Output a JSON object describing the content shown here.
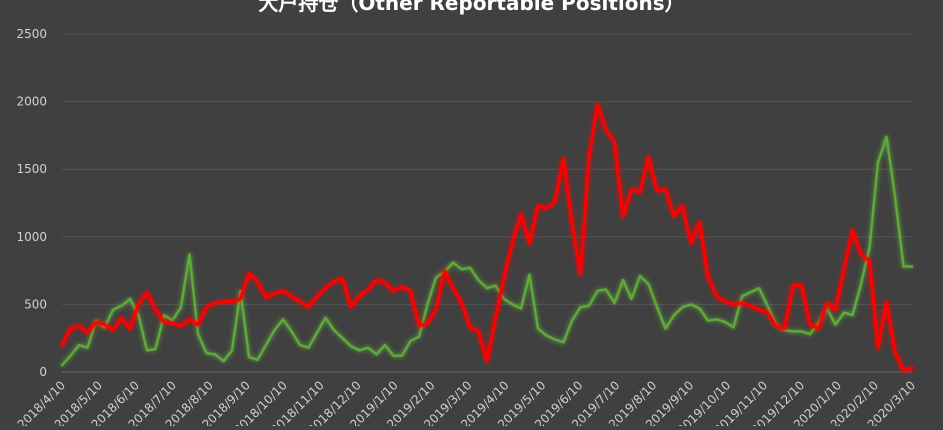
{
  "chart_data": {
    "type": "line",
    "title": "大户持仓（Other Reportable Positions）",
    "xlabel": "",
    "ylabel": "",
    "ylim": [
      0,
      2500
    ],
    "yticks": [
      0,
      500,
      1000,
      1500,
      2000,
      2500
    ],
    "grid": true,
    "legend": "none",
    "x": [
      "2018/4/10",
      "2018/4/17",
      "2018/4/24",
      "2018/5/1",
      "2018/5/8",
      "2018/5/15",
      "2018/5/22",
      "2018/5/29",
      "2018/6/5",
      "2018/6/12",
      "2018/6/19",
      "2018/6/26",
      "2018/7/3",
      "2018/7/10",
      "2018/7/17",
      "2018/7/24",
      "2018/7/31",
      "2018/8/7",
      "2018/8/14",
      "2018/8/21",
      "2018/8/28",
      "2018/9/4",
      "2018/9/11",
      "2018/9/18",
      "2018/9/25",
      "2018/10/2",
      "2018/10/9",
      "2018/10/16",
      "2018/10/23",
      "2018/10/30",
      "2018/11/6",
      "2018/11/13",
      "2018/11/20",
      "2018/11/27",
      "2018/12/4",
      "2018/12/11",
      "2018/12/18",
      "2018/12/25",
      "2019/1/1",
      "2019/1/8",
      "2019/1/15",
      "2019/1/22",
      "2019/1/29",
      "2019/2/5",
      "2019/2/12",
      "2019/2/19",
      "2019/2/26",
      "2019/3/5",
      "2019/3/12",
      "2019/3/19",
      "2019/3/26",
      "2019/4/2",
      "2019/4/9",
      "2019/4/16",
      "2019/4/23",
      "2019/4/30",
      "2019/5/7",
      "2019/5/14",
      "2019/5/21",
      "2019/5/28",
      "2019/6/4",
      "2019/6/11",
      "2019/6/18",
      "2019/6/25",
      "2019/7/2",
      "2019/7/9",
      "2019/7/16",
      "2019/7/23",
      "2019/7/30",
      "2019/8/6",
      "2019/8/13",
      "2019/8/20",
      "2019/8/27",
      "2019/9/3",
      "2019/9/10",
      "2019/9/17",
      "2019/9/24",
      "2019/10/1",
      "2019/10/8",
      "2019/10/15",
      "2019/10/22",
      "2019/10/29",
      "2019/11/5",
      "2019/11/12",
      "2019/11/19",
      "2019/11/26",
      "2019/12/3",
      "2019/12/10",
      "2019/12/17",
      "2019/12/24",
      "2019/12/31",
      "2020/1/7",
      "2020/1/14",
      "2020/1/21",
      "2020/1/28",
      "2020/2/4",
      "2020/2/11",
      "2020/2/18",
      "2020/2/25",
      "2020/3/3",
      "2020/3/10"
    ],
    "tick_labels": [
      "2018/4/10",
      "2018/5/10",
      "2018/6/10",
      "2018/7/10",
      "2018/8/10",
      "2018/9/10",
      "2018/10/10",
      "2018/11/10",
      "2018/12/10",
      "2019/1/10",
      "2019/2/10",
      "2019/3/10",
      "2019/4/10",
      "2019/5/10",
      "2019/6/10",
      "2019/7/10",
      "2019/8/10",
      "2019/9/10",
      "2019/10/10",
      "2019/11/10",
      "2019/12/10",
      "2020/1/10",
      "2020/2/10",
      "2020/3/10"
    ],
    "series": [
      {
        "color": "#5fa83b",
        "values": [
          50,
          120,
          200,
          180,
          380,
          330,
          460,
          490,
          540,
          420,
          160,
          170,
          420,
          380,
          480,
          870,
          280,
          140,
          130,
          80,
          160,
          600,
          110,
          90,
          200,
          310,
          390,
          300,
          200,
          180,
          290,
          400,
          310,
          250,
          190,
          160,
          180,
          130,
          200,
          120,
          120,
          230,
          260,
          500,
          700,
          740,
          810,
          760,
          770,
          680,
          620,
          640,
          540,
          500,
          470,
          720,
          320,
          270,
          240,
          220,
          380,
          480,
          490,
          600,
          610,
          510,
          680,
          540,
          710,
          650,
          480,
          320,
          420,
          480,
          500,
          470,
          380,
          390,
          370,
          330,
          560,
          590,
          620,
          490,
          350,
          310,
          300,
          300,
          280,
          360,
          470,
          350,
          440,
          420,
          650,
          920,
          1550,
          1740,
          1300,
          780,
          780
        ]
      },
      {
        "color": "#ff0000",
        "values": [
          200,
          320,
          340,
          290,
          370,
          350,
          310,
          400,
          320,
          500,
          590,
          460,
          370,
          360,
          340,
          390,
          350,
          480,
          510,
          520,
          520,
          540,
          730,
          670,
          550,
          580,
          600,
          560,
          520,
          480,
          560,
          620,
          670,
          690,
          480,
          560,
          610,
          680,
          660,
          600,
          630,
          600,
          340,
          360,
          460,
          750,
          620,
          510,
          330,
          300,
          80,
          400,
          700,
          960,
          1170,
          950,
          1230,
          1210,
          1260,
          1580,
          1100,
          720,
          1590,
          1980,
          1790,
          1700,
          1150,
          1350,
          1330,
          1590,
          1340,
          1350,
          1150,
          1230,
          950,
          1110,
          700,
          560,
          520,
          500,
          510,
          490,
          460,
          440,
          340,
          320,
          640,
          640,
          350,
          320,
          510,
          460,
          760,
          1050,
          870,
          820,
          180,
          520,
          150,
          10,
          30
        ]
      }
    ]
  }
}
